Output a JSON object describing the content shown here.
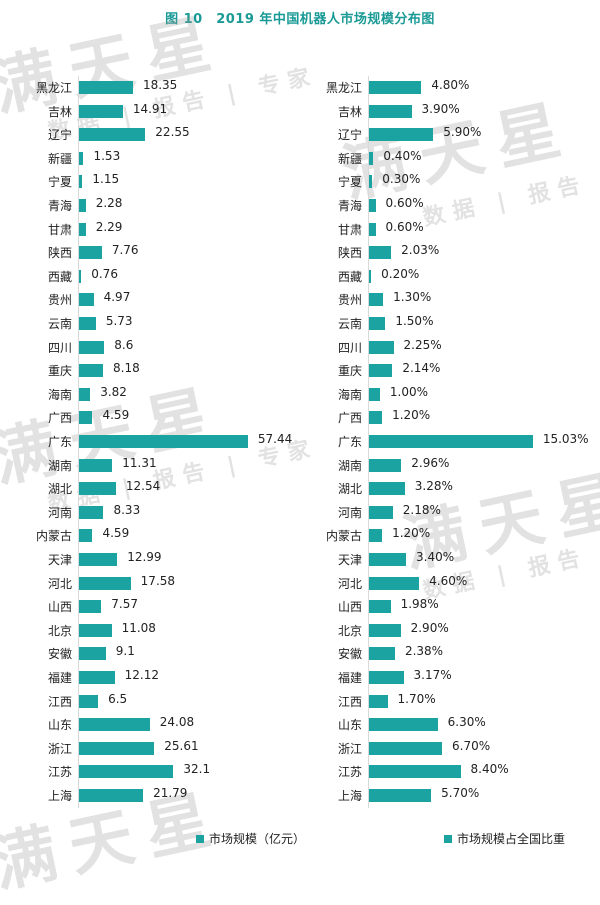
{
  "title": "图 10　2019 年中国机器人市场规模分布图",
  "watermark": {
    "brand": "满天星",
    "tagline": "数据 | 报告 | 专家"
  },
  "colors": {
    "bar": "#1aa3a0",
    "title": "#1a9a96",
    "axis": "#d9d9d9"
  },
  "legend": {
    "left": "市场规模（亿元）",
    "right": "市场规模占全国比重"
  },
  "chart_data": [
    {
      "type": "bar",
      "orientation": "horizontal",
      "title": "2019 年中国机器人市场规模分布图 — 市场规模（亿元）",
      "series": [
        {
          "name": "市场规模（亿元）",
          "values": [
            18.35,
            14.91,
            22.55,
            1.53,
            1.15,
            2.28,
            2.29,
            7.76,
            0.76,
            4.97,
            5.73,
            8.6,
            8.18,
            3.82,
            4.59,
            57.44,
            11.31,
            12.54,
            8.33,
            4.59,
            12.99,
            17.58,
            7.57,
            11.08,
            9.1,
            12.12,
            6.5,
            24.08,
            25.61,
            32.1,
            21.79
          ]
        }
      ],
      "categories": [
        "黑龙江",
        "吉林",
        "辽宁",
        "新疆",
        "宁夏",
        "青海",
        "甘肃",
        "陕西",
        "西藏",
        "贵州",
        "云南",
        "四川",
        "重庆",
        "海南",
        "广西",
        "广东",
        "湖南",
        "湖北",
        "河南",
        "内蒙古",
        "天津",
        "河北",
        "山西",
        "北京",
        "安徽",
        "福建",
        "江西",
        "山东",
        "浙江",
        "江苏",
        "上海"
      ],
      "labels": [
        "18.35",
        "14.91",
        "22.55",
        "1.53",
        "1.15",
        "2.28",
        "2.29",
        "7.76",
        "0.76",
        "4.97",
        "5.73",
        "8.6",
        "8.18",
        "3.82",
        "4.59",
        "57.44",
        "11.31",
        "12.54",
        "8.33",
        "4.59",
        "12.99",
        "17.58",
        "7.57",
        "11.08",
        "9.1",
        "12.12",
        "6.5",
        "24.08",
        "25.61",
        "32.1",
        "21.79"
      ],
      "xlabel": "",
      "ylabel": "",
      "grid": false,
      "legend_position": "bottom"
    },
    {
      "type": "bar",
      "orientation": "horizontal",
      "title": "2019 年中国机器人市场规模分布图 — 市场规模占全国比重",
      "series": [
        {
          "name": "市场规模占全国比重",
          "values": [
            4.8,
            3.9,
            5.9,
            0.4,
            0.3,
            0.6,
            0.6,
            2.03,
            0.2,
            1.3,
            1.5,
            2.25,
            2.14,
            1.0,
            1.2,
            15.03,
            2.96,
            3.28,
            2.18,
            1.2,
            3.4,
            4.6,
            1.98,
            2.9,
            2.38,
            3.17,
            1.7,
            6.3,
            6.7,
            8.4,
            5.7
          ]
        }
      ],
      "categories": [
        "黑龙江",
        "吉林",
        "辽宁",
        "新疆",
        "宁夏",
        "青海",
        "甘肃",
        "陕西",
        "西藏",
        "贵州",
        "云南",
        "四川",
        "重庆",
        "海南",
        "广西",
        "广东",
        "湖南",
        "湖北",
        "河南",
        "内蒙古",
        "天津",
        "河北",
        "山西",
        "北京",
        "安徽",
        "福建",
        "江西",
        "山东",
        "浙江",
        "江苏",
        "上海"
      ],
      "labels": [
        "4.80%",
        "3.90%",
        "5.90%",
        "0.40%",
        "0.30%",
        "0.60%",
        "0.60%",
        "2.03%",
        "0.20%",
        "1.30%",
        "1.50%",
        "2.25%",
        "2.14%",
        "1.00%",
        "1.20%",
        "15.03%",
        "2.96%",
        "3.28%",
        "2.18%",
        "1.20%",
        "3.40%",
        "4.60%",
        "1.98%",
        "2.90%",
        "2.38%",
        "3.17%",
        "1.70%",
        "6.30%",
        "6.70%",
        "8.40%",
        "5.70%"
      ],
      "xlabel": "",
      "ylabel": "",
      "grid": false,
      "legend_position": "bottom"
    }
  ]
}
